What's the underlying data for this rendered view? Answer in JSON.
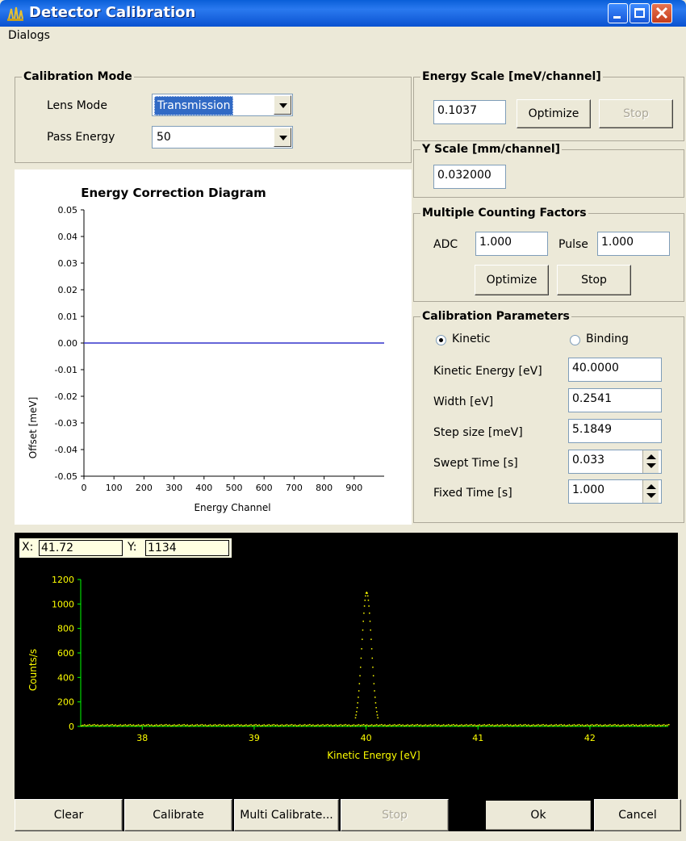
{
  "window": {
    "title": "Detector Calibration"
  },
  "menu": {
    "dialogs": "Dialogs"
  },
  "calibration_mode": {
    "title": "Calibration Mode",
    "lens_mode_label": "Lens Mode",
    "lens_mode_value": "Transmission",
    "pass_energy_label": "Pass Energy",
    "pass_energy_value": "50"
  },
  "energy_scale": {
    "title": "Energy Scale [meV/channel]",
    "value": "0.1037",
    "optimize": "Optimize",
    "stop": "Stop"
  },
  "y_scale": {
    "title": "Y Scale [mm/channel]",
    "value": "0.032000"
  },
  "counting_factors": {
    "title": "Multiple Counting Factors",
    "adc_label": "ADC",
    "adc_value": "1.000",
    "pulse_label": "Pulse",
    "pulse_value": "1.000",
    "optimize": "Optimize",
    "stop": "Stop"
  },
  "calibration_parameters": {
    "title": "Calibration Parameters",
    "kinetic": "Kinetic",
    "binding": "Binding",
    "kinetic_energy_label": "Kinetic Energy [eV]",
    "kinetic_energy_value": "40.0000",
    "width_label": "Width [eV]",
    "width_value": "0.2541",
    "step_label": "Step size [meV]",
    "step_value": "5.1849",
    "swept_label": "Swept Time [s]",
    "swept_value": "0.033",
    "fixed_label": "Fixed Time [s]",
    "fixed_value": "1.000"
  },
  "cursor": {
    "x_label": "X:",
    "x_value": "41.72",
    "y_label": "Y:",
    "y_value": "1134"
  },
  "buttons": {
    "clear": "Clear",
    "calibrate": "Calibrate",
    "multi_calibrate": "Multi Calibrate...",
    "stop": "Stop",
    "ok": "Ok",
    "cancel": "Cancel"
  },
  "colors": {
    "correction_line": "#3333cc",
    "spectrum_points": "#ffff00",
    "spectrum_axes": "#00ff00",
    "spectrum_bg": "#000000"
  },
  "chart_data": [
    {
      "type": "line",
      "title": "Energy Correction Diagram",
      "xlabel": "Energy Channel",
      "ylabel": "Offset [meV]",
      "xlim": [
        0,
        1000
      ],
      "ylim": [
        -0.05,
        0.05
      ],
      "x_ticks": [
        "0",
        "100",
        "200",
        "300",
        "400",
        "500",
        "600",
        "700",
        "800",
        "900"
      ],
      "y_ticks": [
        "0.05",
        "0.04",
        "0.03",
        "0.02",
        "0.01",
        "0.00",
        "-0.01",
        "-0.02",
        "-0.03",
        "-0.04",
        "-0.05"
      ],
      "series": [
        {
          "x": [
            0,
            1000
          ],
          "values": [
            0,
            0
          ]
        }
      ]
    },
    {
      "type": "scatter",
      "xlabel": "Kinetic Energy [eV]",
      "ylabel": "Counts/s",
      "xlim": [
        37.45,
        42.7
      ],
      "ylim": [
        0,
        1200
      ],
      "x_ticks": [
        "38",
        "39",
        "40",
        "41",
        "42"
      ],
      "y_ticks": [
        "1200",
        "1000",
        "800",
        "600",
        "400",
        "200",
        "0"
      ],
      "peak_center": 40.0,
      "peak_height": 1100,
      "peak_width": 0.2541
    }
  ]
}
